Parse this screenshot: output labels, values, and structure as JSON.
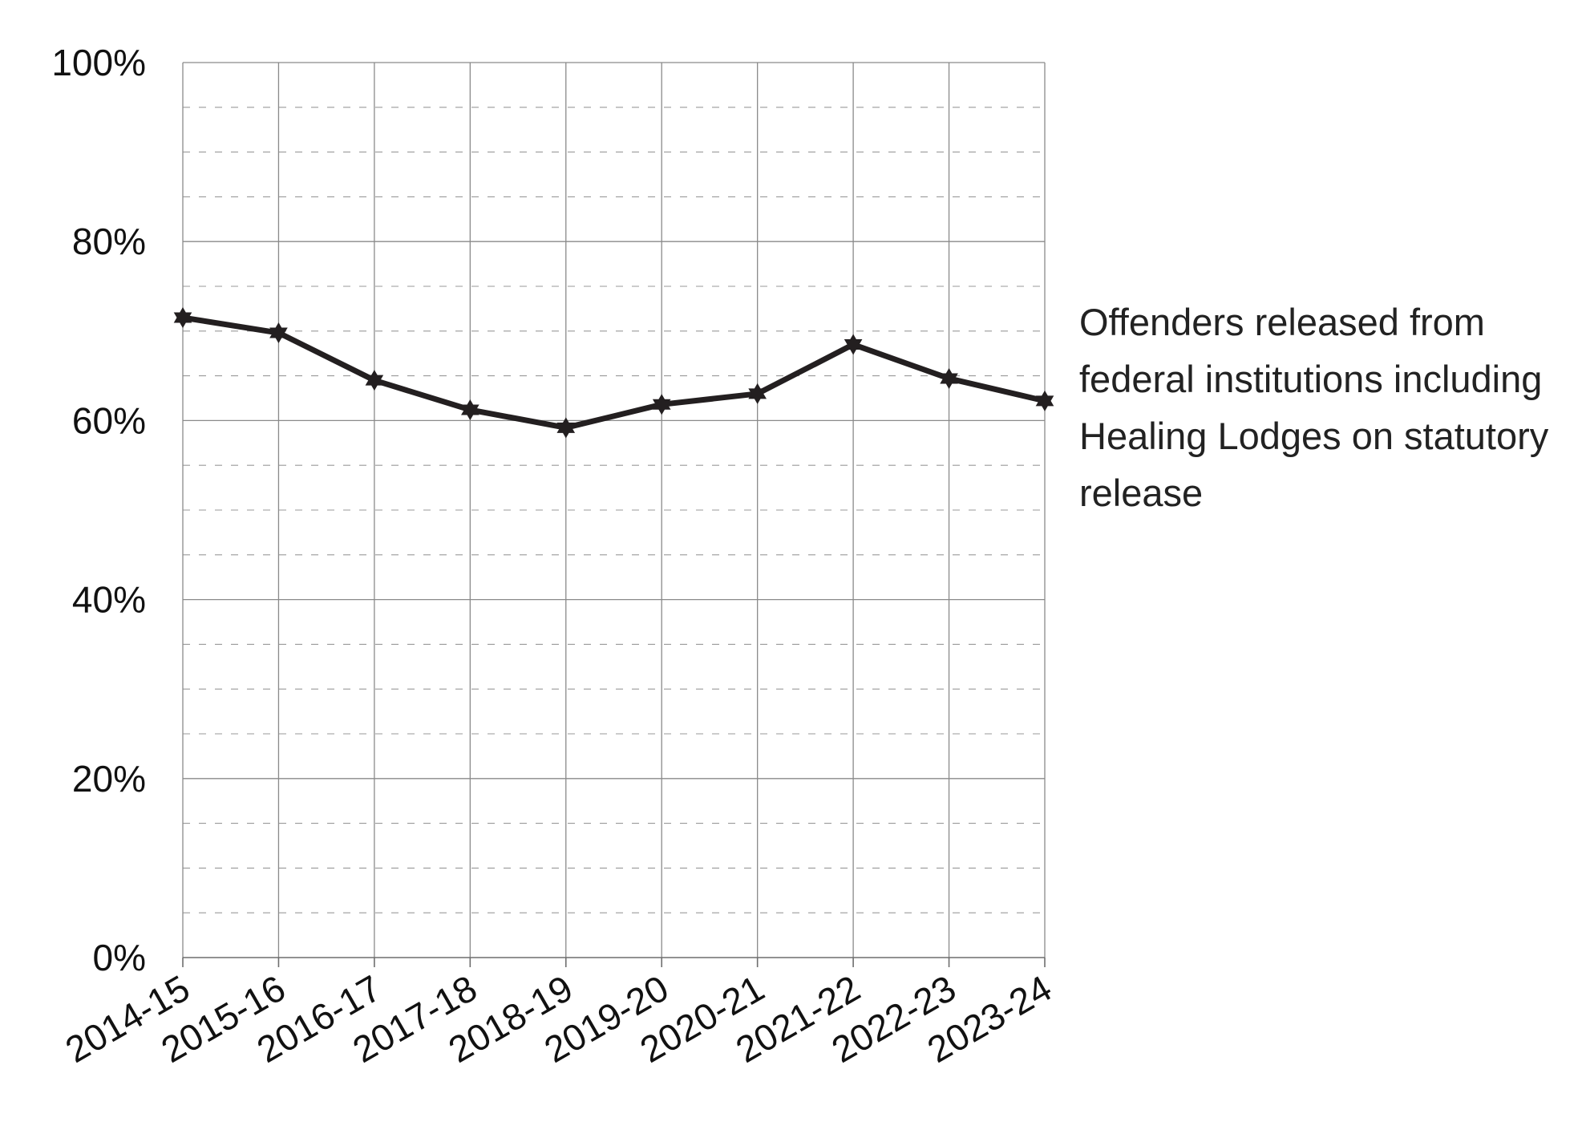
{
  "chart_data": {
    "type": "line",
    "title": "",
    "xlabel": "",
    "ylabel": "",
    "categories": [
      "2014-15",
      "2015-16",
      "2016-17",
      "2017-18",
      "2018-19",
      "2019-20",
      "2020-21",
      "2021-22",
      "2022-23",
      "2023-24"
    ],
    "y_ticks": [
      "0%",
      "20%",
      "40%",
      "60%",
      "80%",
      "100%"
    ],
    "ylim": [
      0,
      100
    ],
    "grid": true,
    "legend_position": "right",
    "series": [
      {
        "name": "Offenders released from federal institutions including Healing Lodges on statutory release",
        "values": [
          71.5,
          69.8,
          64.5,
          61.2,
          59.2,
          61.8,
          63.0,
          68.5,
          64.7,
          62.2
        ],
        "color": "#231f20",
        "marker": "star"
      }
    ]
  }
}
